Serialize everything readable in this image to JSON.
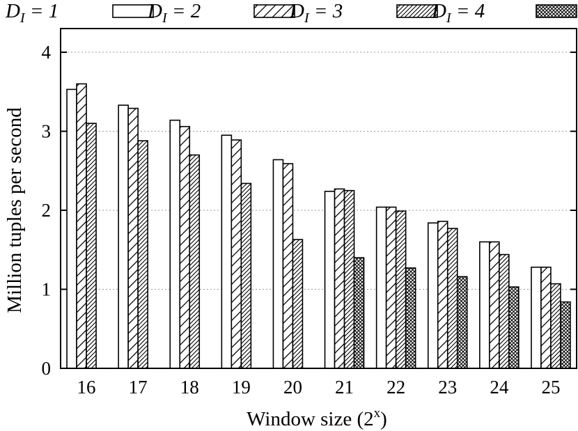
{
  "chart_data": {
    "type": "bar",
    "title": "",
    "xlabel": "Window size (2",
    "xlabel_sup": "x",
    "xlabel_close": ")",
    "ylabel": "Million tuples per second",
    "categories": [
      "16",
      "17",
      "18",
      "19",
      "20",
      "21",
      "22",
      "23",
      "24",
      "25"
    ],
    "ylim": [
      0,
      4.3
    ],
    "yticks": [
      "0",
      "1",
      "2",
      "3",
      "4"
    ],
    "grid": true,
    "legend_position": "top",
    "series": [
      {
        "name": "D",
        "sub": "I",
        "suffix": " = 1",
        "pattern": "solid",
        "values": [
          3.53,
          3.33,
          3.14,
          2.95,
          2.64,
          2.24,
          2.04,
          1.84,
          1.6,
          1.28
        ]
      },
      {
        "name": "D",
        "sub": "I",
        "suffix": " = 2",
        "pattern": "wide-hatch",
        "values": [
          3.6,
          3.29,
          3.06,
          2.89,
          2.59,
          2.27,
          2.04,
          1.86,
          1.6,
          1.28
        ]
      },
      {
        "name": "D",
        "sub": "I",
        "suffix": " = 3",
        "pattern": "dense-hatch",
        "values": [
          3.1,
          2.88,
          2.7,
          2.34,
          1.63,
          2.25,
          1.99,
          1.77,
          1.44,
          1.07
        ]
      },
      {
        "name": "D",
        "sub": "I",
        "suffix": " = 4",
        "pattern": "crosshatch",
        "values": [
          null,
          null,
          null,
          null,
          null,
          1.4,
          1.27,
          1.16,
          1.03,
          0.84
        ]
      }
    ]
  }
}
